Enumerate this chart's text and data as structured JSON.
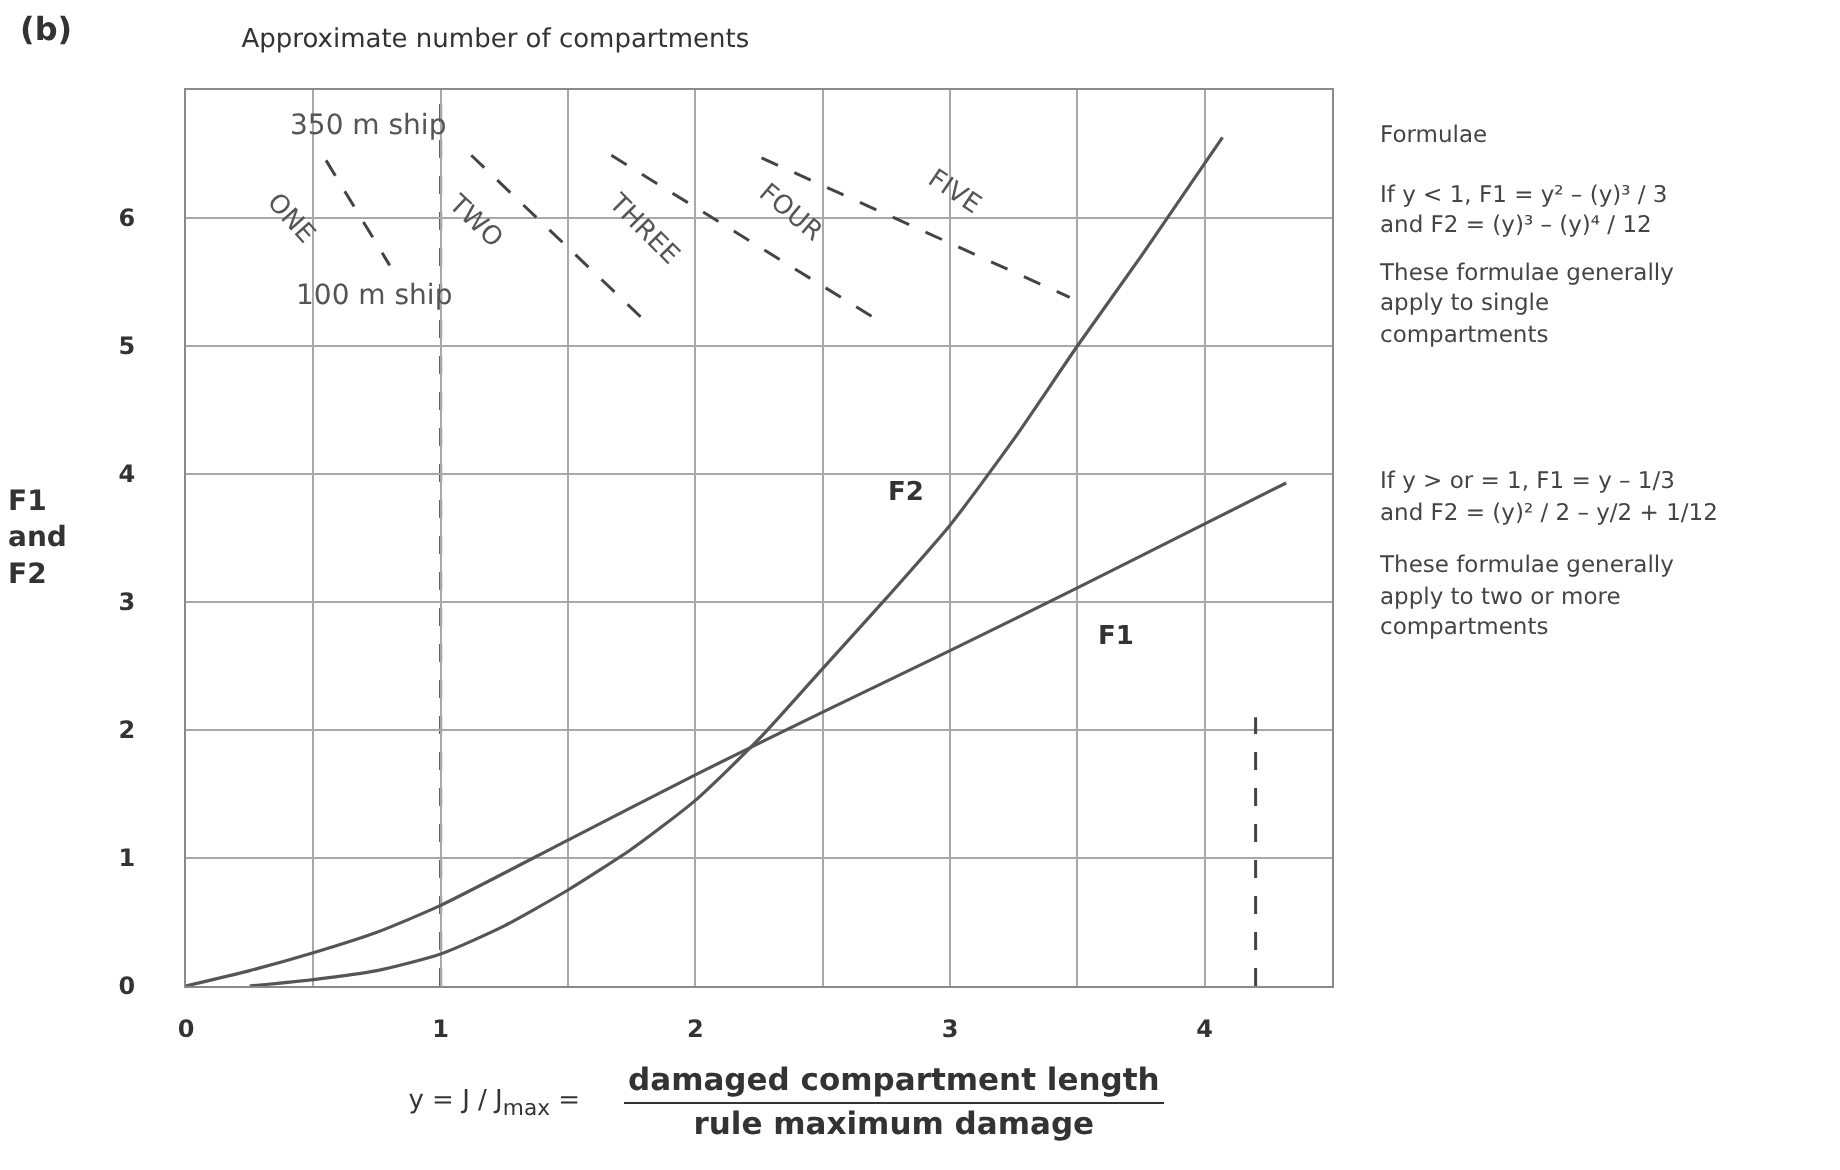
{
  "chart_data": {
    "type": "line",
    "title": "Approximate number of compartments",
    "xlabel": "y = J / J$_{max}$ = damaged compartment length\nrule maximum damage",
    "ylabel": "F1\nand\nF2",
    "xlim": [
      0,
      4.5
    ],
    "xticks": [
      0,
      {
        "value": 0.5,
        "label": null
      },
      1,
      {
        "value": 1.5,
        "label": null
      },
      2,
      {
        "value": 2.5,
        "label": null
      },
      3,
      {
        "value": 3.5,
        "label": null
      },
      4
    ],
    "ylim": [
      0,
      7
    ],
    "yticks": [
      0,
      1,
      2,
      3,
      4,
      5,
      6
    ],
    "grid": true,
    "series": [
      {
        "name": "F1",
        "color": "#555555",
        "x": [
          0,
          0.25,
          0.5,
          0.75,
          1,
          1.5,
          2,
          2.5,
          3,
          3.5,
          4,
          4.32
        ],
        "values": [
          0,
          0.12,
          0.26,
          0.42,
          0.63,
          1.14,
          1.65,
          2.14,
          2.62,
          3.11,
          3.61,
          3.93
        ]
      },
      {
        "name": "F2",
        "color": "#555555",
        "x": [
          0.25,
          0.5,
          0.75,
          1,
          1.25,
          1.5,
          1.75,
          2,
          2.25,
          2.5,
          2.75,
          3,
          3.25,
          3.5,
          3.75,
          4.07
        ],
        "values": [
          0,
          0.05,
          0.12,
          0.25,
          0.47,
          0.75,
          1.07,
          1.45,
          1.93,
          2.48,
          3.03,
          3.6,
          4.27,
          5.0,
          5.7,
          6.63
        ]
      },
      {
        "color": "#444444",
        "line_style": "dashed",
        "x": [
          0.55,
          0.8
        ],
        "values": [
          6.45,
          5.63
        ]
      },
      {
        "color": "#444444",
        "line_style": "dashed",
        "x": [
          1.12,
          1.8
        ],
        "values": [
          6.49,
          5.2
        ]
      },
      {
        "color": "#444444",
        "line_style": "dashed",
        "x": [
          1.67,
          2.71
        ],
        "values": [
          6.49,
          5.21
        ]
      },
      {
        "color": "#444444",
        "line_style": "dashed",
        "x": [
          2.26,
          3.47
        ],
        "values": [
          6.47,
          5.38
        ]
      },
      {
        "color": "#444444",
        "line_style": "dashed",
        "x": [
          4.2,
          4.2
        ],
        "values": [
          0,
          2.1
        ]
      }
    ],
    "ref_lines": [
      {
        "axis": "x",
        "value": 1,
        "color": "#444444",
        "line_style": "dashed"
      }
    ],
    "annotations": [
      "(b)",
      "350 m ship",
      "100 m ship",
      "ONE",
      "TWO",
      "THREE",
      "FOUR",
      "FIVE",
      "Formulae",
      "If y < 1, F1 = y² – (y)³ / 3\nand F2 = (y)³ – (y)⁴ / 12",
      "These formulae generally\napply to single\ncompartments",
      "If y > or = 1, F1 = y – 1/3\nand F2 = (y)² / 2 – y/2 + 1/12",
      "These formulae generally\napply to two or more\ncompartments"
    ]
  }
}
